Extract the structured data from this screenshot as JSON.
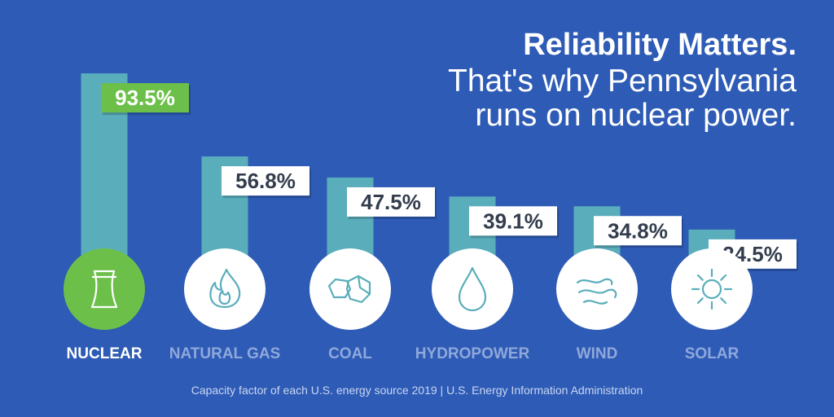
{
  "headline": {
    "line1": "Reliability Matters.",
    "line2": "That's why Pennsylvania",
    "line3": "runs on nuclear power."
  },
  "source_note": "Capacity factor of each U.S. energy source 2019 | U.S. Energy Information Administration",
  "colors": {
    "background": "#2e5bb5",
    "bar": "#5aadbb",
    "highlight": "#6cc04a",
    "label_text": "#333d4d",
    "category_muted": "#8fa8dc",
    "icon_stroke": "#5aadbb"
  },
  "chart_data": {
    "type": "bar",
    "title": "",
    "xlabel": "",
    "ylabel": "",
    "ylim": [
      0,
      100
    ],
    "grid": false,
    "highlight_category": "NUCLEAR",
    "categories": [
      "NUCLEAR",
      "NATURAL GAS",
      "COAL",
      "HYDROPOWER",
      "WIND",
      "SOLAR"
    ],
    "values": [
      93.5,
      56.8,
      47.5,
      39.1,
      34.8,
      24.5
    ],
    "value_labels": [
      "93.5%",
      "56.8%",
      "47.5%",
      "39.1%",
      "34.8%",
      "24.5%"
    ],
    "icons": [
      "nuclear-cooling-tower-icon",
      "natural-gas-flame-icon",
      "coal-icon",
      "hydropower-water-drop-icon",
      "wind-icon",
      "solar-sun-icon"
    ]
  }
}
